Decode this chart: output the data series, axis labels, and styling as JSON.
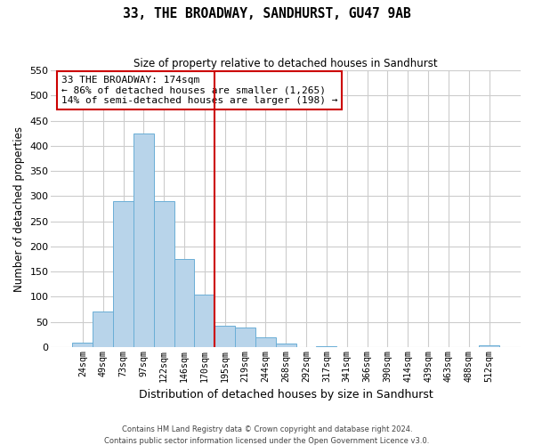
{
  "title": "33, THE BROADWAY, SANDHURST, GU47 9AB",
  "subtitle": "Size of property relative to detached houses in Sandhurst",
  "xlabel": "Distribution of detached houses by size in Sandhurst",
  "ylabel": "Number of detached properties",
  "footer_line1": "Contains HM Land Registry data © Crown copyright and database right 2024.",
  "footer_line2": "Contains public sector information licensed under the Open Government Licence v3.0.",
  "bin_labels": [
    "24sqm",
    "49sqm",
    "73sqm",
    "97sqm",
    "122sqm",
    "146sqm",
    "170sqm",
    "195sqm",
    "219sqm",
    "244sqm",
    "268sqm",
    "292sqm",
    "317sqm",
    "341sqm",
    "366sqm",
    "390sqm",
    "414sqm",
    "439sqm",
    "463sqm",
    "488sqm",
    "512sqm"
  ],
  "bar_values": [
    8,
    70,
    290,
    425,
    290,
    175,
    105,
    43,
    38,
    20,
    7,
    0,
    2,
    0,
    0,
    0,
    0,
    0,
    0,
    0,
    3
  ],
  "bar_color": "#b8d4ea",
  "bar_edge_color": "#6aaed6",
  "ylim": [
    0,
    550
  ],
  "yticks": [
    0,
    50,
    100,
    150,
    200,
    250,
    300,
    350,
    400,
    450,
    500,
    550
  ],
  "annotation_title": "33 THE BROADWAY: 174sqm",
  "annotation_line1": "← 86% of detached houses are smaller (1,265)",
  "annotation_line2": "14% of semi-detached houses are larger (198) →",
  "vline_bin_index": 7,
  "vline_color": "#cc0000",
  "box_edge_color": "#cc0000",
  "background_color": "#ffffff",
  "grid_color": "#cccccc"
}
